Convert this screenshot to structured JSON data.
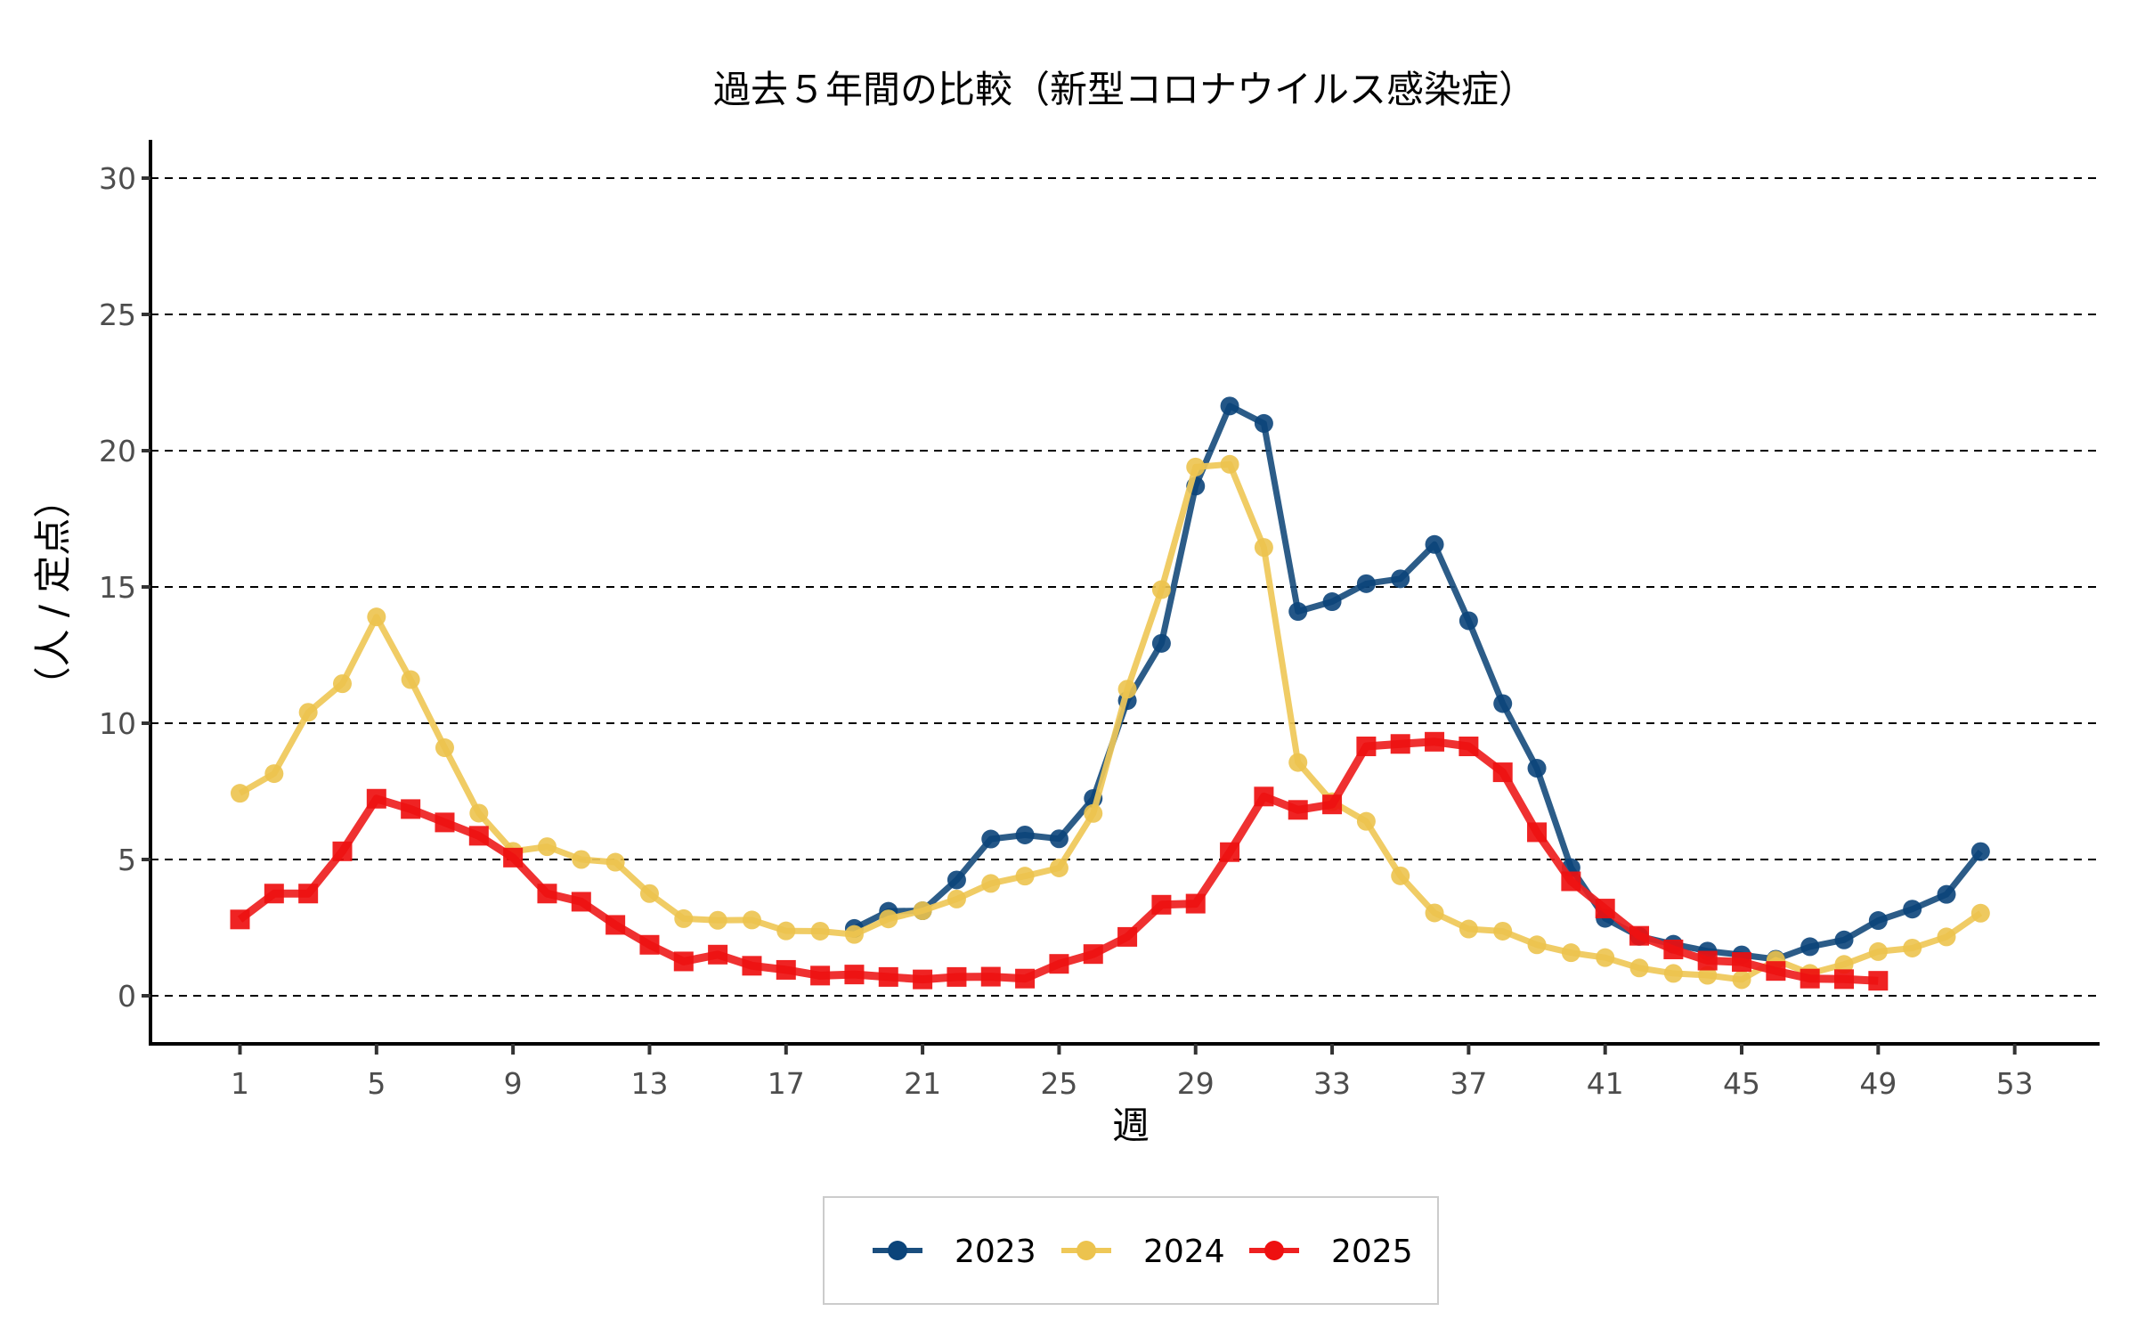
{
  "chart_data": {
    "type": "line",
    "title": "過去５年間の比較（新型コロナウイルス感染症）",
    "xlabel": "週",
    "ylabel": "（人 / 定点）",
    "xlim": [
      -0.7,
      55.1
    ],
    "ylim": [
      -1.5,
      31.5
    ],
    "x_ticks": [
      1,
      5,
      9,
      13,
      17,
      21,
      25,
      29,
      33,
      37,
      41,
      45,
      49,
      53
    ],
    "y_ticks": [
      0,
      5,
      10,
      15,
      20,
      25,
      30
    ],
    "grid": "horizontal dashed",
    "legend_position": "bottom",
    "series": [
      {
        "name": "2023",
        "color": "#1a4e7e",
        "point_color": "#0b447a",
        "marker": "circle",
        "start_week": 19,
        "values": [
          2.47,
          3.1,
          3.12,
          4.25,
          5.75,
          5.9,
          5.76,
          7.24,
          10.83,
          12.93,
          18.7,
          21.64,
          21.0,
          14.1,
          14.46,
          15.12,
          15.3,
          16.56,
          13.76,
          10.72,
          8.35,
          4.7,
          2.84,
          2.18,
          1.89,
          1.64,
          1.5,
          1.34,
          1.8,
          2.05,
          2.76,
          3.18,
          3.72,
          5.29
        ]
      },
      {
        "name": "2024",
        "color": "#efc858",
        "point_color": "#ecc34e",
        "marker": "circle",
        "start_week": 1,
        "values": [
          7.43,
          8.15,
          10.4,
          11.45,
          13.9,
          11.6,
          9.1,
          6.7,
          5.3,
          5.47,
          5.0,
          4.9,
          3.75,
          2.83,
          2.77,
          2.78,
          2.38,
          2.37,
          2.25,
          2.82,
          3.12,
          3.55,
          4.12,
          4.39,
          4.69,
          6.69,
          11.25,
          14.9,
          19.4,
          19.5,
          16.45,
          8.56,
          7.12,
          6.4,
          4.4,
          3.04,
          2.45,
          2.37,
          1.87,
          1.58,
          1.4,
          1.02,
          0.82,
          0.75,
          0.59,
          1.31,
          0.82,
          1.15,
          1.62,
          1.75,
          2.16,
          3.03
        ]
      },
      {
        "name": "2025",
        "color": "#ee2020",
        "point_color": "#ee1010",
        "marker": "square",
        "start_week": 1,
        "values": [
          2.8,
          3.75,
          3.75,
          5.3,
          7.23,
          6.85,
          6.36,
          5.87,
          5.07,
          3.75,
          3.45,
          2.6,
          1.87,
          1.26,
          1.51,
          1.1,
          0.95,
          0.74,
          0.78,
          0.69,
          0.6,
          0.69,
          0.7,
          0.63,
          1.17,
          1.53,
          2.16,
          3.34,
          3.38,
          5.27,
          7.31,
          6.82,
          7.02,
          9.15,
          9.24,
          9.32,
          9.15,
          8.2,
          6.0,
          4.2,
          3.2,
          2.2,
          1.7,
          1.29,
          1.24,
          0.91,
          0.63,
          0.61,
          0.55
        ]
      }
    ]
  }
}
